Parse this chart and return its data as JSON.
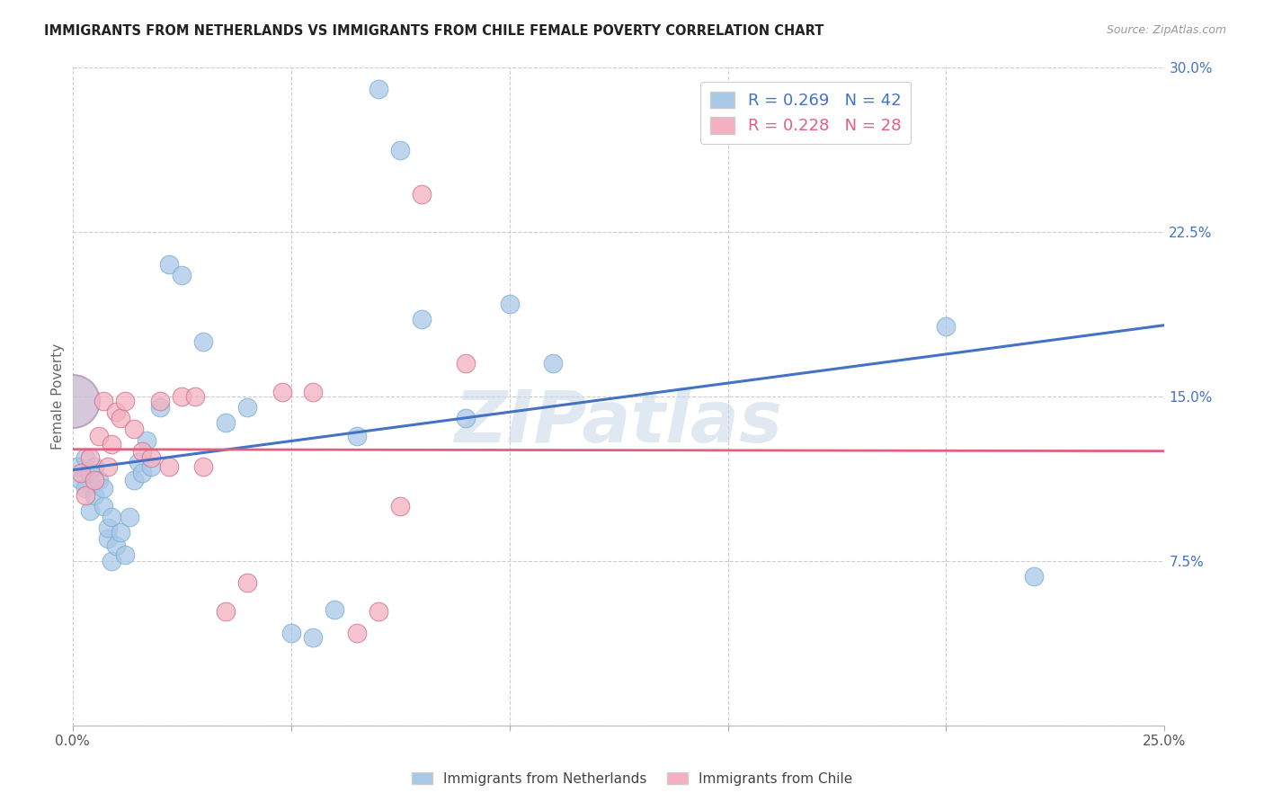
{
  "title": "IMMIGRANTS FROM NETHERLANDS VS IMMIGRANTS FROM CHILE FEMALE POVERTY CORRELATION CHART",
  "source": "Source: ZipAtlas.com",
  "ylabel": "Female Poverty",
  "xlim": [
    0.0,
    0.25
  ],
  "ylim": [
    0.0,
    0.3
  ],
  "xticks": [
    0.0,
    0.05,
    0.1,
    0.15,
    0.2,
    0.25
  ],
  "yticks": [
    0.0,
    0.075,
    0.15,
    0.225,
    0.3
  ],
  "xtick_labels": [
    "0.0%",
    "",
    "",
    "",
    "",
    "25.0%"
  ],
  "ytick_labels_left": [
    "",
    "",
    "",
    "",
    ""
  ],
  "ytick_labels_right": [
    "",
    "7.5%",
    "15.0%",
    "22.5%",
    "30.0%"
  ],
  "legend_labels": [
    "Immigrants from Netherlands",
    "Immigrants from Chile"
  ],
  "R_netherlands": 0.269,
  "N_netherlands": 42,
  "R_chile": 0.228,
  "N_chile": 28,
  "color_netherlands": "#a8c8e8",
  "color_chile": "#f4b0c0",
  "line_color_netherlands": "#4472c4",
  "line_color_chile": "#e06080",
  "background_color": "#ffffff",
  "watermark": "ZIPatlas",
  "netherlands_x": [
    0.001,
    0.002,
    0.003,
    0.003,
    0.004,
    0.004,
    0.005,
    0.005,
    0.006,
    0.007,
    0.007,
    0.008,
    0.008,
    0.009,
    0.009,
    0.01,
    0.011,
    0.012,
    0.013,
    0.014,
    0.015,
    0.016,
    0.017,
    0.018,
    0.02,
    0.022,
    0.025,
    0.03,
    0.035,
    0.04,
    0.05,
    0.055,
    0.06,
    0.065,
    0.07,
    0.075,
    0.08,
    0.09,
    0.1,
    0.11,
    0.2,
    0.22
  ],
  "netherlands_y": [
    0.118,
    0.112,
    0.122,
    0.108,
    0.098,
    0.115,
    0.105,
    0.118,
    0.112,
    0.1,
    0.108,
    0.085,
    0.09,
    0.075,
    0.095,
    0.082,
    0.088,
    0.078,
    0.095,
    0.112,
    0.12,
    0.115,
    0.13,
    0.118,
    0.145,
    0.21,
    0.205,
    0.175,
    0.138,
    0.145,
    0.042,
    0.04,
    0.053,
    0.132,
    0.29,
    0.262,
    0.185,
    0.14,
    0.192,
    0.165,
    0.182,
    0.068
  ],
  "netherlands_large_x": [
    0.0
  ],
  "netherlands_large_y": [
    0.148
  ],
  "chile_x": [
    0.002,
    0.003,
    0.004,
    0.005,
    0.006,
    0.007,
    0.008,
    0.009,
    0.01,
    0.011,
    0.012,
    0.014,
    0.016,
    0.018,
    0.02,
    0.022,
    0.025,
    0.028,
    0.03,
    0.035,
    0.04,
    0.048,
    0.055,
    0.065,
    0.07,
    0.075,
    0.08,
    0.09
  ],
  "chile_y": [
    0.115,
    0.105,
    0.122,
    0.112,
    0.132,
    0.148,
    0.118,
    0.128,
    0.143,
    0.14,
    0.148,
    0.135,
    0.125,
    0.122,
    0.148,
    0.118,
    0.15,
    0.15,
    0.118,
    0.052,
    0.065,
    0.152,
    0.152,
    0.042,
    0.052,
    0.1,
    0.242,
    0.165
  ],
  "chile_large_x": [
    0.0
  ],
  "chile_large_y": [
    0.148
  ]
}
